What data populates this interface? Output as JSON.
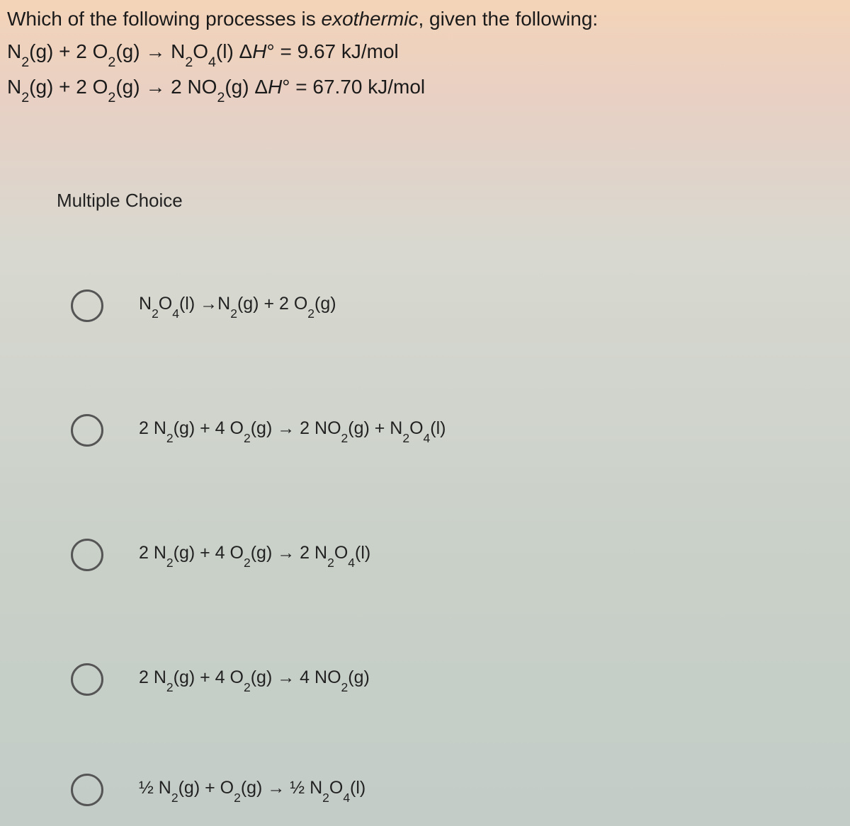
{
  "question": {
    "prompt_plain": "Which of the following processes is exothermic, given the following:",
    "eq1_plain": "N2(g) + 2 O2(g) → N2O4(l) ΔH° = 9.67 kJ/mol",
    "eq2_plain": "N2(g) + 2 O2(g) → 2 NO2(g) ΔH° = 67.70 kJ/mol"
  },
  "section_label": "Multiple Choice",
  "options": {
    "a_plain": "N2O4(l) → N2(g) + 2 O2(g)",
    "b_plain": "2 N2(g) + 4 O2(g) → 2 NO2(g) + N2O4(l)",
    "c_plain": "2 N2(g) + 4 O2(g) → 2 N2O4(l)",
    "d_plain": "2 N2(g) + 4 O2(g) → 4 NO2(g)",
    "e_plain": "½ N2(g) + O2(g) → ½ N2O4(l)"
  },
  "colors": {
    "text": "#1a1a1a",
    "radio_border": "#555555",
    "bg_top": "#f4d4b8",
    "bg_bottom": "#c4ccc8"
  },
  "fontsizes": {
    "question": 28,
    "section": 26,
    "option": 25
  }
}
